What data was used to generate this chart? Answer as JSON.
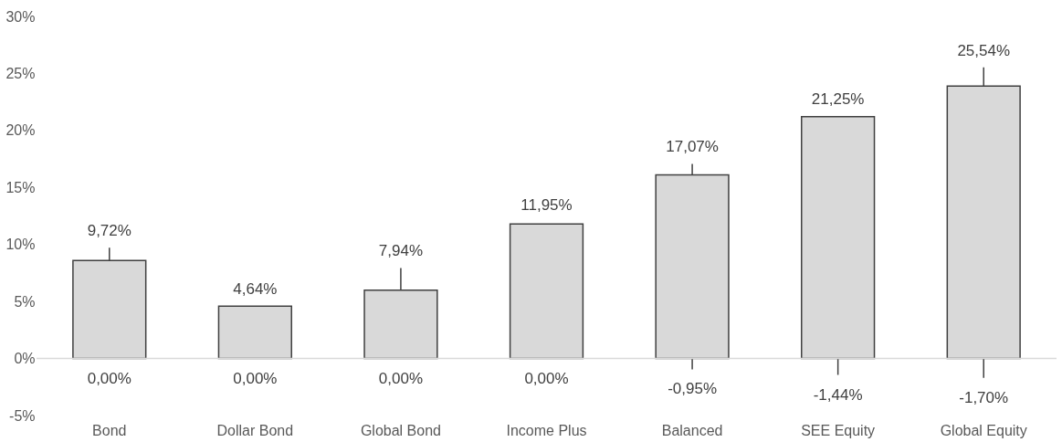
{
  "chart_data": {
    "type": "bar",
    "categories": [
      "Bond",
      "Dollar Bond",
      "Global Bond",
      "Income Plus",
      "Balanced",
      "SEE Equity",
      "Global Equity"
    ],
    "series": [
      {
        "color": "#d9d9d9",
        "values": [
          8.6,
          4.6,
          6.0,
          11.8,
          16.1,
          21.2,
          23.9
        ],
        "errors": [
          [
            0,
            9.72
          ],
          null,
          [
            0,
            7.94
          ],
          null,
          [
            -0.95,
            17.07
          ],
          [
            -1.44,
            21.25
          ],
          [
            -1.7,
            25.54
          ]
        ]
      }
    ],
    "ylim": [
      -5,
      30
    ],
    "yticks": [
      {
        "value": -5,
        "label": "-5%"
      },
      {
        "value": 0,
        "label": "0%"
      },
      {
        "value": 5,
        "label": "5%"
      },
      {
        "value": 10,
        "label": "10%"
      },
      {
        "value": 15,
        "label": "15%"
      },
      {
        "value": 20,
        "label": "20%"
      },
      {
        "value": 25,
        "label": "25%"
      },
      {
        "value": 30,
        "label": "30%"
      }
    ],
    "ref_lines": [
      {
        "axis": "y",
        "value": 0,
        "color": "#d9d9d9"
      }
    ],
    "grid": false,
    "annotations": [
      {
        "text": "9,72%",
        "x": "Bond",
        "y": 9.72
      },
      {
        "text": "0,00%",
        "x": "Bond",
        "y": 0
      },
      {
        "text": "4,64%",
        "x": "Dollar Bond",
        "y": 4.64
      },
      {
        "text": "0,00%",
        "x": "Dollar Bond",
        "y": 0
      },
      {
        "text": "7,94%",
        "x": "Global Bond",
        "y": 7.94
      },
      {
        "text": "0,00%",
        "x": "Global Bond",
        "y": 0
      },
      {
        "text": "11,95%",
        "x": "Income Plus",
        "y": 11.95
      },
      {
        "text": "0,00%",
        "x": "Income Plus",
        "y": 0
      },
      {
        "text": "17,07%",
        "x": "Balanced",
        "y": 17.07
      },
      {
        "text": "-0,95%",
        "x": "Balanced",
        "y": -0.95
      },
      {
        "text": "21,25%",
        "x": "SEE Equity",
        "y": 21.25
      },
      {
        "text": "-1,44%",
        "x": "SEE Equity",
        "y": -1.44
      },
      {
        "text": "25,54%",
        "x": "Global Equity",
        "y": 25.54
      },
      {
        "text": "-1,70%",
        "x": "Global Equity",
        "y": -1.7
      }
    ]
  }
}
